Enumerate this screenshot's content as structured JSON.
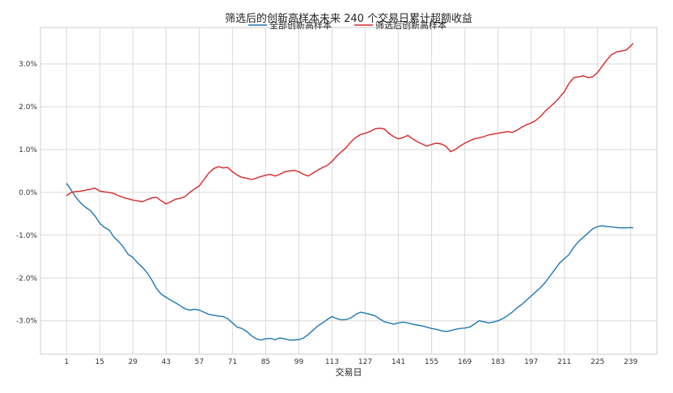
{
  "chart_data": {
    "type": "line",
    "title": "筛选后的创新高样本未来 240 个交易日累计超额收益",
    "xlabel": "交易日",
    "ylabel": "",
    "x_ticks": [
      1,
      15,
      29,
      43,
      57,
      71,
      85,
      99,
      113,
      127,
      141,
      155,
      169,
      183,
      197,
      211,
      225,
      239
    ],
    "xlim": [
      -10,
      250
    ],
    "y_ticks": [
      -0.03,
      -0.02,
      -0.01,
      0.0,
      0.01,
      0.02,
      0.03
    ],
    "y_tick_labels": [
      "-3.0%",
      "-2.0%",
      "-1.0%",
      "0.0%",
      "1.0%",
      "2.0%",
      "3.0%"
    ],
    "ylim": [
      -0.0378,
      0.0385
    ],
    "grid": true,
    "legend_position": "top-center",
    "series": [
      {
        "name": "全部创新高样本",
        "color": "#1f77b4",
        "x": [
          1,
          3,
          5,
          7,
          9,
          11,
          13,
          15,
          17,
          19,
          21,
          23,
          25,
          27,
          29,
          31,
          33,
          35,
          37,
          39,
          41,
          43,
          45,
          47,
          49,
          51,
          53,
          55,
          57,
          59,
          61,
          63,
          65,
          67,
          69,
          71,
          73,
          75,
          77,
          79,
          81,
          83,
          85,
          87,
          89,
          91,
          93,
          95,
          97,
          99,
          101,
          103,
          105,
          107,
          109,
          111,
          113,
          115,
          117,
          119,
          121,
          123,
          125,
          127,
          129,
          131,
          133,
          135,
          137,
          139,
          141,
          143,
          145,
          147,
          149,
          151,
          153,
          155,
          157,
          159,
          161,
          163,
          165,
          167,
          169,
          171,
          173,
          175,
          177,
          179,
          181,
          183,
          185,
          187,
          189,
          191,
          193,
          195,
          197,
          199,
          201,
          203,
          205,
          207,
          209,
          211,
          213,
          215,
          217,
          219,
          221,
          223,
          225,
          227,
          229,
          231,
          233,
          235,
          237,
          239,
          240
        ],
        "values": [
          0.0021,
          0.0005,
          -0.0012,
          -0.0025,
          -0.0035,
          -0.0042,
          -0.0055,
          -0.0072,
          -0.0082,
          -0.0088,
          -0.0105,
          -0.0115,
          -0.0128,
          -0.0145,
          -0.0152,
          -0.0165,
          -0.0175,
          -0.0188,
          -0.0205,
          -0.0225,
          -0.0238,
          -0.0245,
          -0.0252,
          -0.0258,
          -0.0265,
          -0.0272,
          -0.0275,
          -0.0273,
          -0.0275,
          -0.028,
          -0.0285,
          -0.0287,
          -0.0289,
          -0.029,
          -0.0295,
          -0.0305,
          -0.0315,
          -0.0318,
          -0.0325,
          -0.0335,
          -0.0342,
          -0.0345,
          -0.0342,
          -0.0341,
          -0.0344,
          -0.034,
          -0.0342,
          -0.0345,
          -0.0345,
          -0.0344,
          -0.034,
          -0.0332,
          -0.0322,
          -0.0312,
          -0.0305,
          -0.0297,
          -0.029,
          -0.0295,
          -0.0298,
          -0.0297,
          -0.0293,
          -0.0285,
          -0.028,
          -0.0282,
          -0.0285,
          -0.0288,
          -0.0295,
          -0.0302,
          -0.0305,
          -0.0308,
          -0.0305,
          -0.0303,
          -0.0305,
          -0.0308,
          -0.031,
          -0.0312,
          -0.0315,
          -0.0318,
          -0.032,
          -0.0323,
          -0.0325,
          -0.0323,
          -0.032,
          -0.0318,
          -0.0317,
          -0.0315,
          -0.0308,
          -0.03,
          -0.0302,
          -0.0305,
          -0.0303,
          -0.03,
          -0.0295,
          -0.0288,
          -0.028,
          -0.027,
          -0.0262,
          -0.0252,
          -0.0242,
          -0.0232,
          -0.0222,
          -0.021,
          -0.0195,
          -0.018,
          -0.0165,
          -0.0155,
          -0.0145,
          -0.0128,
          -0.0115,
          -0.0105,
          -0.0095,
          -0.0085,
          -0.008,
          -0.0078,
          -0.008,
          -0.0081,
          -0.0082,
          -0.0083,
          -0.0083,
          -0.0082,
          -0.0083
        ]
      },
      {
        "name": "筛选后创新高样本",
        "color": "#d62728",
        "x": [
          1,
          3,
          5,
          7,
          9,
          11,
          13,
          15,
          17,
          19,
          21,
          23,
          25,
          27,
          29,
          31,
          33,
          35,
          37,
          39,
          41,
          43,
          45,
          47,
          49,
          51,
          53,
          55,
          57,
          59,
          61,
          63,
          65,
          67,
          69,
          71,
          73,
          75,
          77,
          79,
          81,
          83,
          85,
          87,
          89,
          91,
          93,
          95,
          97,
          99,
          101,
          103,
          105,
          107,
          109,
          111,
          113,
          115,
          117,
          119,
          121,
          123,
          125,
          127,
          129,
          131,
          133,
          135,
          137,
          139,
          141,
          143,
          145,
          147,
          149,
          151,
          153,
          155,
          157,
          159,
          161,
          163,
          165,
          167,
          169,
          171,
          173,
          175,
          177,
          179,
          181,
          183,
          185,
          187,
          189,
          191,
          193,
          195,
          197,
          199,
          201,
          203,
          205,
          207,
          209,
          211,
          213,
          215,
          217,
          219,
          221,
          223,
          225,
          227,
          229,
          231,
          233,
          235,
          237,
          239,
          240
        ],
        "values": [
          -0.0008,
          0.0,
          0.0002,
          0.0003,
          0.0005,
          0.0007,
          0.001,
          0.0003,
          0.0001,
          0.0,
          -0.0003,
          -0.0008,
          -0.0012,
          -0.0015,
          -0.0018,
          -0.002,
          -0.0022,
          -0.0017,
          -0.0013,
          -0.0012,
          -0.002,
          -0.0027,
          -0.0022,
          -0.0016,
          -0.0014,
          -0.001,
          0.0,
          0.0008,
          0.0015,
          0.003,
          0.0045,
          0.0055,
          0.006,
          0.0057,
          0.0058,
          0.0048,
          0.004,
          0.0035,
          0.0033,
          0.003,
          0.0033,
          0.0037,
          0.004,
          0.0042,
          0.0038,
          0.0042,
          0.0048,
          0.005,
          0.0051,
          0.0048,
          0.0042,
          0.0038,
          0.0045,
          0.0052,
          0.0058,
          0.0063,
          0.0072,
          0.0085,
          0.0095,
          0.0105,
          0.0118,
          0.0128,
          0.0135,
          0.0138,
          0.0142,
          0.0148,
          0.015,
          0.0148,
          0.0138,
          0.013,
          0.0125,
          0.0128,
          0.0133,
          0.0125,
          0.0118,
          0.0113,
          0.0108,
          0.0112,
          0.0115,
          0.0113,
          0.0108,
          0.0095,
          0.01,
          0.0108,
          0.0115,
          0.012,
          0.0125,
          0.0127,
          0.013,
          0.0134,
          0.0136,
          0.0138,
          0.014,
          0.0142,
          0.014,
          0.0145,
          0.0152,
          0.0158,
          0.0162,
          0.0168,
          0.0178,
          0.019,
          0.02,
          0.021,
          0.0222,
          0.0235,
          0.0255,
          0.0268,
          0.027,
          0.0272,
          0.0268,
          0.027,
          0.028,
          0.0295,
          0.031,
          0.0322,
          0.0328,
          0.033,
          0.0332,
          0.0342,
          0.0348
        ]
      }
    ]
  }
}
